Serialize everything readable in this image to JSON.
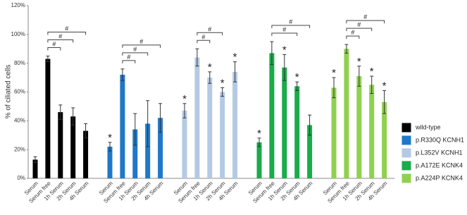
{
  "chart_data": {
    "type": "bar",
    "y_label": "% of ciliated cells",
    "categories": [
      "Serum",
      "Serum free",
      "1h Serum",
      "2h Serum",
      "4h Serum"
    ],
    "ylim": [
      0,
      120
    ],
    "yticks": [
      {
        "value": 0,
        "label": "0%"
      },
      {
        "value": 20,
        "label": "20%"
      },
      {
        "value": 40,
        "label": "40%"
      },
      {
        "value": 60,
        "label": "60%"
      },
      {
        "value": 80,
        "label": "80%"
      },
      {
        "value": 100,
        "label": "100%"
      },
      {
        "value": 120,
        "label": "120%"
      }
    ],
    "legend": "right",
    "series": [
      {
        "name": "wild-type",
        "color": "#000000",
        "values": [
          13,
          83,
          46,
          43,
          33
        ],
        "errors": [
          2,
          2,
          5,
          6,
          5
        ],
        "stars": [
          null,
          null,
          null,
          null,
          null
        ],
        "brackets": [
          {
            "from": 1,
            "to": 2,
            "label": "#"
          },
          {
            "from": 1,
            "to": 3,
            "label": "#"
          },
          {
            "from": 1,
            "to": 4,
            "label": "#"
          }
        ]
      },
      {
        "name": "p.R330Q KCNH1",
        "color": "#1f78c8",
        "values": [
          22,
          72,
          34,
          38,
          42
        ],
        "errors": [
          3,
          4,
          11,
          16,
          10
        ],
        "stars": [
          "*",
          null,
          null,
          null,
          null
        ],
        "brackets": [
          {
            "from": 1,
            "to": 2,
            "label": "#"
          },
          {
            "from": 1,
            "to": 3,
            "label": "#"
          },
          {
            "from": 1,
            "to": 4,
            "label": "#"
          }
        ]
      },
      {
        "name": "p.L352V KCNH1",
        "color": "#b4c9e4",
        "values": [
          47,
          84,
          70,
          60,
          74
        ],
        "errors": [
          5,
          6,
          4,
          3,
          7
        ],
        "stars": [
          "*",
          null,
          "*",
          "*",
          "*"
        ],
        "brackets": [
          {
            "from": 1,
            "to": 2,
            "label": "#"
          },
          {
            "from": 1,
            "to": 3,
            "label": "#"
          }
        ]
      },
      {
        "name": "p.A172E KCNK4",
        "color": "#1aab4b",
        "values": [
          25,
          87,
          77,
          64,
          37
        ],
        "errors": [
          3,
          8,
          9,
          3,
          7
        ],
        "stars": [
          "*",
          null,
          "*",
          "*",
          null
        ],
        "brackets": [
          {
            "from": 1,
            "to": 3,
            "label": "#"
          },
          {
            "from": 1,
            "to": 4,
            "label": "#"
          }
        ]
      },
      {
        "name": "p.A224P KCNK4",
        "color": "#8fd14f",
        "values": [
          63,
          90,
          71,
          65,
          53
        ],
        "errors": [
          7,
          3,
          7,
          6,
          8
        ],
        "stars": [
          "*",
          null,
          "*",
          "*",
          "*"
        ],
        "brackets": [
          {
            "from": 1,
            "to": 2,
            "label": "#"
          },
          {
            "from": 1,
            "to": 3,
            "label": "#"
          },
          {
            "from": 1,
            "to": 4,
            "label": "#"
          }
        ]
      }
    ]
  }
}
